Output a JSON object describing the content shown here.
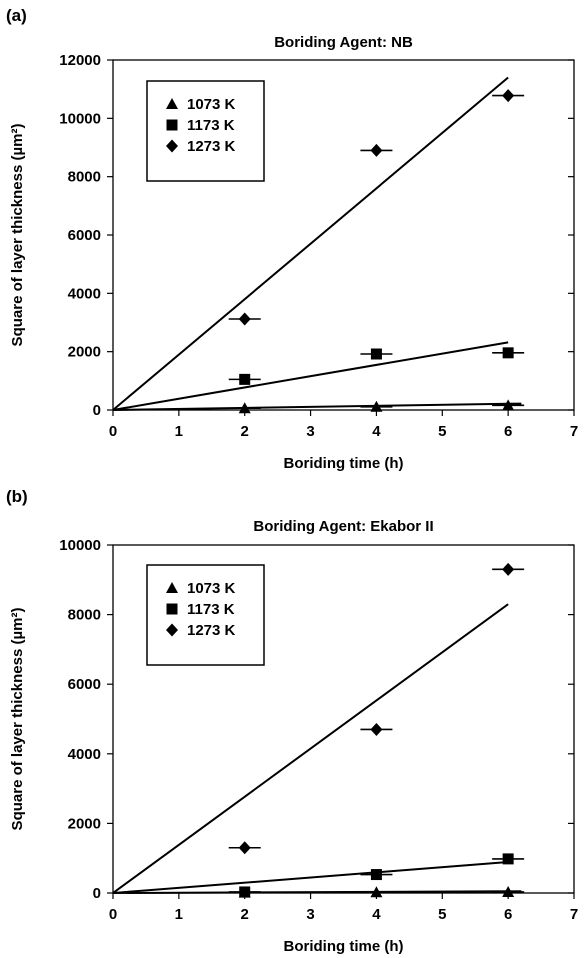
{
  "panels": [
    {
      "letter": "(a)"
    },
    {
      "letter": "(b)"
    }
  ],
  "chart_data": [
    {
      "type": "scatter",
      "title": "Boriding Agent: NB",
      "xlabel": "Boriding time (h)",
      "ylabel": "Square of layer thickness (µm²)",
      "xlim": [
        0,
        7
      ],
      "ylim": [
        0,
        12000
      ],
      "xticks": [
        0,
        1,
        2,
        3,
        4,
        5,
        6,
        7
      ],
      "yticks": [
        0,
        2000,
        4000,
        6000,
        8000,
        10000,
        12000
      ],
      "grid": false,
      "legend_position": "top-left",
      "series": [
        {
          "name": "1073 K",
          "marker": "triangle",
          "x": [
            2,
            4,
            6
          ],
          "y": [
            60,
            110,
            160
          ],
          "fit": [
            [
              0,
              0
            ],
            [
              6.2,
              220
            ]
          ]
        },
        {
          "name": "1173 K",
          "marker": "square",
          "x": [
            2,
            4,
            6
          ],
          "y": [
            1050,
            1920,
            1960
          ],
          "fit": [
            [
              0,
              0
            ],
            [
              6,
              2320
            ]
          ]
        },
        {
          "name": "1273 K",
          "marker": "diamond",
          "x": [
            2,
            4,
            6
          ],
          "y": [
            3120,
            8900,
            10780
          ],
          "fit": [
            [
              0,
              0
            ],
            [
              6,
              11400
            ]
          ]
        }
      ]
    },
    {
      "type": "scatter",
      "title": "Boriding Agent: Ekabor II",
      "xlabel": "Boriding time (h)",
      "ylabel": "Square of layer thickness (µm²)",
      "xlim": [
        0,
        7
      ],
      "ylim": [
        0,
        10000
      ],
      "xticks": [
        0,
        1,
        2,
        3,
        4,
        5,
        6,
        7
      ],
      "yticks": [
        0,
        2000,
        4000,
        6000,
        8000,
        10000
      ],
      "grid": false,
      "legend_position": "top-left",
      "series": [
        {
          "name": "1073 K",
          "marker": "triangle",
          "x": [
            2,
            4,
            6
          ],
          "y": [
            10,
            20,
            30
          ],
          "fit": [
            [
              0,
              0
            ],
            [
              6.2,
              50
            ]
          ]
        },
        {
          "name": "1173 K",
          "marker": "square",
          "x": [
            2,
            4,
            6
          ],
          "y": [
            30,
            530,
            980
          ],
          "fit": [
            [
              0,
              0
            ],
            [
              6,
              890
            ]
          ]
        },
        {
          "name": "1273 K",
          "marker": "diamond",
          "x": [
            2,
            4,
            6
          ],
          "y": [
            1300,
            4700,
            9300
          ],
          "fit": [
            [
              0,
              0
            ],
            [
              6,
              8300
            ]
          ]
        }
      ]
    }
  ]
}
